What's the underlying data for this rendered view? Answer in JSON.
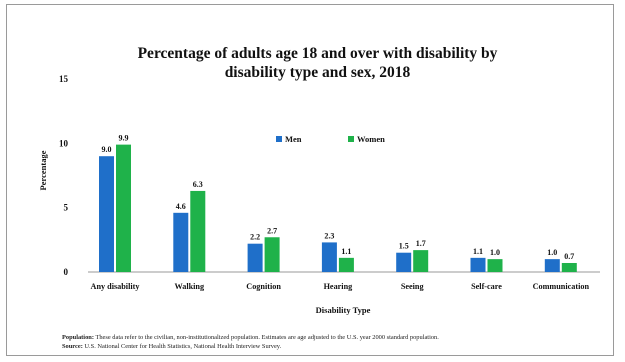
{
  "chart_data": {
    "type": "bar",
    "title_line1": "Percentage of adults age 18 and over with disability by",
    "title_line2": "disability type and sex, 2018",
    "xlabel": "Disability Type",
    "ylabel": "Percentage",
    "ylim": [
      0,
      15
    ],
    "yticks": [
      "0",
      "5",
      "10",
      "15"
    ],
    "categories": [
      "Any disability",
      "Walking",
      "Cognition",
      "Hearing",
      "Seeing",
      "Self-care",
      "Communication"
    ],
    "series": [
      {
        "name": "Men",
        "color": "#1f6fc9",
        "values": [
          9.0,
          4.6,
          2.2,
          2.3,
          1.5,
          1.1,
          1.0
        ],
        "labels": [
          "9.0",
          "4.6",
          "2.2",
          "2.3",
          "1.5",
          "1.1",
          "1.0"
        ]
      },
      {
        "name": "Women",
        "color": "#1fb24a",
        "values": [
          9.9,
          6.3,
          2.7,
          1.1,
          1.7,
          1.0,
          0.7
        ],
        "labels": [
          "9.9",
          "6.3",
          "2.7",
          "1.1",
          "1.7",
          "1.0",
          "0.7"
        ]
      }
    ],
    "legend_position": "top-center",
    "grid": false
  },
  "notes": {
    "population_label": "Population:",
    "population_text": " These data refer to the civilian, non-institutionalized population. Estimates are age adjusted to the U.S. year 2000 standard population.",
    "source_label": "Source:",
    "source_text": " U.S. National Center for Health Statistics, National Health Interview Survey."
  }
}
